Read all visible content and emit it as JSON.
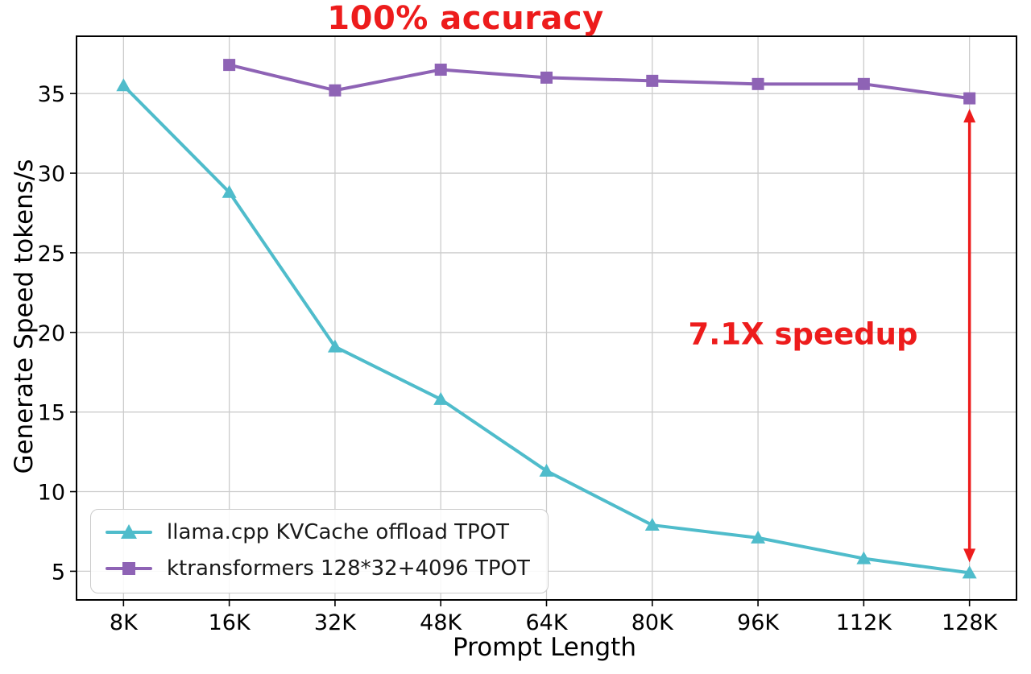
{
  "figure": {
    "background": "#ffffff"
  },
  "chart_data": {
    "type": "line",
    "title": "100% accuracy",
    "title_color": "#ed1c1c",
    "xlabel": "Prompt Length",
    "ylabel": "Generate Speed tokens/s",
    "categories": [
      "8K",
      "16K",
      "32K",
      "48K",
      "64K",
      "80K",
      "96K",
      "112K",
      "128K"
    ],
    "yticks": [
      5,
      10,
      15,
      20,
      25,
      30,
      35
    ],
    "ylim": [
      3.2,
      38.6
    ],
    "grid": true,
    "legend": {
      "position": "lower left"
    },
    "series": [
      {
        "name": "llama.cpp KVCache offload TPOT",
        "marker": "triangle",
        "color": "#4fbccb",
        "values": [
          35.5,
          28.8,
          19.1,
          15.8,
          11.3,
          7.9,
          7.1,
          5.8,
          4.9
        ]
      },
      {
        "name": "ktransformers 128*32+4096 TPOT",
        "marker": "square",
        "color": "#8e63b5",
        "values": [
          null,
          36.8,
          35.2,
          36.5,
          36.0,
          35.8,
          35.6,
          35.6,
          34.7
        ]
      }
    ],
    "annotations": {
      "speedup": {
        "text": "7.1X speedup",
        "color": "#ed1c1c"
      }
    },
    "arrow": {
      "x_category": "128K",
      "from_value": 34.7,
      "to_value": 4.9,
      "color": "#ed1c1c"
    }
  }
}
